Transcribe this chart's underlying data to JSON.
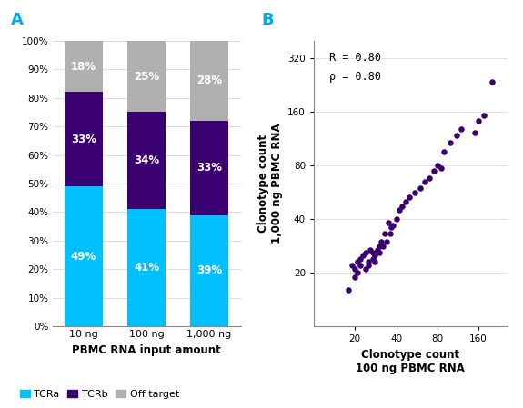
{
  "bar_categories": [
    "10 ng",
    "100 ng",
    "1,000 ng"
  ],
  "bar_tcra": [
    49,
    41,
    39
  ],
  "bar_tcrb": [
    33,
    34,
    33
  ],
  "bar_off": [
    18,
    25,
    28
  ],
  "color_tcra": "#00C0FF",
  "color_tcrb": "#3B0070",
  "color_off": "#B0B0B0",
  "xlabel_bar": "PBMC RNA input amount",
  "legend_labels": [
    "TCRa",
    "TCRb",
    "Off target"
  ],
  "panel_a_label": "A",
  "panel_b_label": "B",
  "panel_label_color": "#00AAEE",
  "scatter_x": [
    18,
    19,
    20,
    20,
    21,
    21,
    22,
    22,
    23,
    24,
    24,
    25,
    25,
    26,
    27,
    27,
    28,
    28,
    29,
    30,
    30,
    31,
    32,
    33,
    34,
    35,
    36,
    37,
    38,
    40,
    42,
    44,
    47,
    50,
    55,
    60,
    65,
    70,
    75,
    80,
    85,
    90,
    100,
    110,
    120,
    150,
    160,
    175,
    200
  ],
  "scatter_y": [
    16,
    22,
    21,
    19,
    23,
    20,
    24,
    22,
    25,
    21,
    26,
    23,
    22,
    27,
    24,
    26,
    25,
    23,
    27,
    28,
    26,
    30,
    28,
    33,
    30,
    38,
    33,
    36,
    37,
    40,
    45,
    47,
    50,
    53,
    56,
    60,
    65,
    68,
    75,
    80,
    77,
    95,
    107,
    118,
    128,
    122,
    142,
    152,
    235
  ],
  "scatter_color": "#3B0070",
  "scatter_xlabel": "Clonotype count\n100 ng PBMC RNA",
  "scatter_ylabel": "Clonotype count\n1,000 ng PBMC RNA",
  "scatter_annotation": "R = 0.80\nρ = 0.80",
  "scatter_xlim": [
    10,
    260
  ],
  "scatter_ylim": [
    10,
    400
  ],
  "scatter_xticks": [
    20,
    40,
    80,
    160
  ],
  "scatter_yticks": [
    20,
    40,
    80,
    160,
    320
  ],
  "scatter_ytick_labels": [
    "20",
    "40",
    "80",
    "160",
    "320"
  ],
  "scatter_xtick_labels": [
    "20",
    "40",
    "80",
    "160"
  ]
}
